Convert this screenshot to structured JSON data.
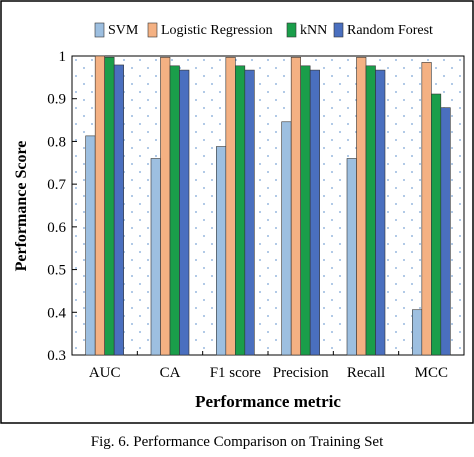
{
  "caption": "Fig. 6.   Performance Comparison on Training Set",
  "chart_data": {
    "type": "bar",
    "title": "",
    "xlabel": "Performance metric",
    "ylabel": "Performance Score",
    "ylim": [
      0.3,
      1
    ],
    "yticks": [
      "0.3",
      "0.4",
      "0.5",
      "0.6",
      "0.7",
      "0.8",
      "0.9",
      "1"
    ],
    "categories": [
      "AUC",
      "CA",
      "F1 score",
      "Precision",
      "Recall",
      "MCC"
    ],
    "legend_position": "top",
    "grid": false,
    "background_pattern": "dotted",
    "series": [
      {
        "name": "SVM",
        "color": "#9dbfe0",
        "values": [
          0.813,
          0.76,
          0.788,
          0.846,
          0.76,
          0.406
        ]
      },
      {
        "name": "Logistic Regression",
        "color": "#f4b183",
        "values": [
          1.0,
          0.997,
          0.997,
          0.997,
          0.997,
          0.985
        ]
      },
      {
        "name": "kNN",
        "color": "#1a9e4a",
        "values": [
          0.997,
          0.977,
          0.977,
          0.977,
          0.977,
          0.911
        ]
      },
      {
        "name": "Random Forest",
        "color": "#4a6fbf",
        "values": [
          0.979,
          0.967,
          0.967,
          0.967,
          0.967,
          0.879
        ]
      }
    ]
  }
}
